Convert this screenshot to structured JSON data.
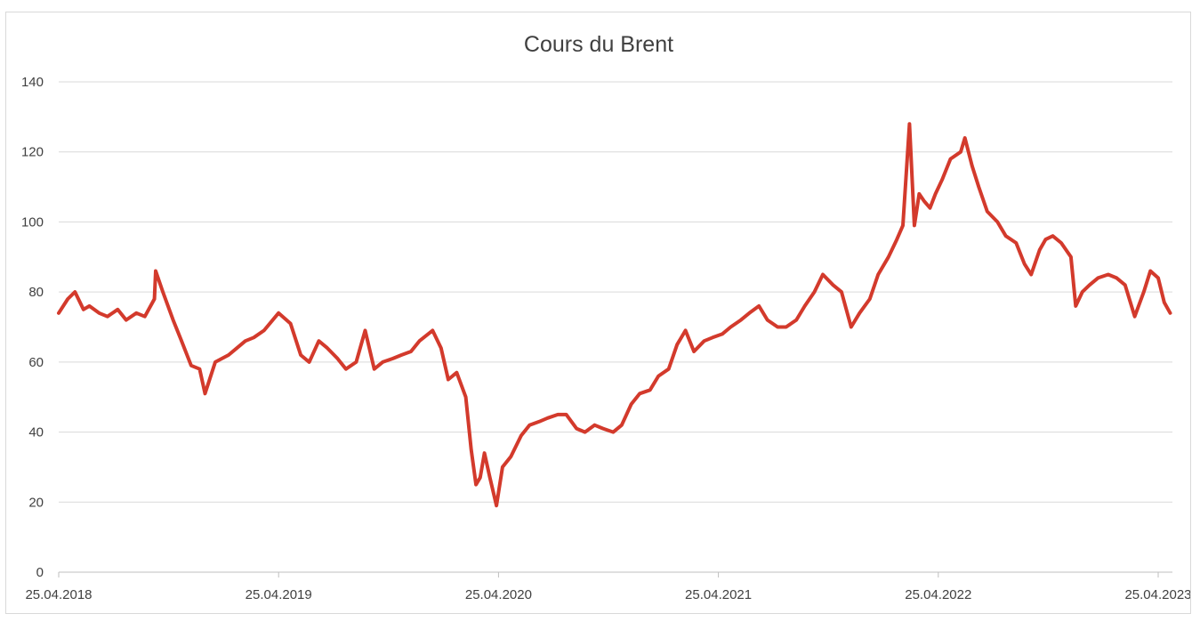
{
  "chart_data": {
    "type": "line",
    "title": "Cours du Brent",
    "xlabel": "",
    "ylabel": "",
    "ylim": [
      0,
      140
    ],
    "yticks": [
      0,
      20,
      40,
      60,
      80,
      100,
      120,
      140
    ],
    "xlim": [
      "2018-04-25",
      "2023-05-15"
    ],
    "xtick_labels": [
      "25.04.2018",
      "25.04.2019",
      "25.04.2020",
      "25.04.2021",
      "25.04.2022",
      "25.04.2023"
    ],
    "grid": true,
    "legend": "none",
    "color": "#d33a2c",
    "series": [
      {
        "x": [
          "2018-04-25",
          "2018-05-10",
          "2018-05-22",
          "2018-06-05",
          "2018-06-15",
          "2018-07-01",
          "2018-07-15",
          "2018-08-01",
          "2018-08-15",
          "2018-09-01",
          "2018-09-15",
          "2018-10-01",
          "2018-10-03",
          "2018-10-15",
          "2018-11-01",
          "2018-11-15",
          "2018-12-01",
          "2018-12-15",
          "2018-12-24",
          "2019-01-10",
          "2019-02-01",
          "2019-02-15",
          "2019-03-01",
          "2019-03-15",
          "2019-04-01",
          "2019-04-25",
          "2019-05-15",
          "2019-06-01",
          "2019-06-15",
          "2019-07-01",
          "2019-07-15",
          "2019-08-01",
          "2019-08-15",
          "2019-09-01",
          "2019-09-16",
          "2019-10-01",
          "2019-10-15",
          "2019-11-01",
          "2019-11-15",
          "2019-12-01",
          "2019-12-15",
          "2020-01-06",
          "2020-01-20",
          "2020-02-01",
          "2020-02-15",
          "2020-03-01",
          "2020-03-10",
          "2020-03-18",
          "2020-03-25",
          "2020-04-01",
          "2020-04-10",
          "2020-04-21",
          "2020-05-01",
          "2020-05-15",
          "2020-06-01",
          "2020-06-15",
          "2020-07-01",
          "2020-07-15",
          "2020-08-01",
          "2020-08-15",
          "2020-09-01",
          "2020-09-15",
          "2020-10-01",
          "2020-10-15",
          "2020-11-01",
          "2020-11-15",
          "2020-12-01",
          "2020-12-15",
          "2021-01-01",
          "2021-01-15",
          "2021-02-01",
          "2021-02-15",
          "2021-03-01",
          "2021-03-15",
          "2021-04-01",
          "2021-04-15",
          "2021-05-01",
          "2021-05-15",
          "2021-06-01",
          "2021-06-15",
          "2021-07-01",
          "2021-07-15",
          "2021-08-01",
          "2021-08-15",
          "2021-09-01",
          "2021-09-15",
          "2021-10-01",
          "2021-10-15",
          "2021-11-01",
          "2021-11-15",
          "2021-12-01",
          "2021-12-15",
          "2022-01-01",
          "2022-01-15",
          "2022-02-01",
          "2022-02-15",
          "2022-02-25",
          "2022-03-08",
          "2022-03-16",
          "2022-03-24",
          "2022-04-01",
          "2022-04-11",
          "2022-04-20",
          "2022-05-01",
          "2022-05-15",
          "2022-06-01",
          "2022-06-08",
          "2022-06-20",
          "2022-07-01",
          "2022-07-15",
          "2022-08-01",
          "2022-08-15",
          "2022-09-01",
          "2022-09-15",
          "2022-09-26",
          "2022-10-10",
          "2022-10-20",
          "2022-11-01",
          "2022-11-15",
          "2022-12-01",
          "2022-12-09",
          "2022-12-20",
          "2023-01-01",
          "2023-01-15",
          "2023-02-01",
          "2023-02-15",
          "2023-03-01",
          "2023-03-17",
          "2023-04-01",
          "2023-04-12",
          "2023-04-25",
          "2023-05-05",
          "2023-05-15"
        ],
        "y": [
          74,
          78,
          80,
          75,
          76,
          74,
          73,
          75,
          72,
          74,
          73,
          78,
          86,
          80,
          72,
          66,
          59,
          58,
          51,
          60,
          62,
          64,
          66,
          67,
          69,
          74,
          71,
          62,
          60,
          66,
          64,
          61,
          58,
          60,
          69,
          58,
          60,
          61,
          62,
          63,
          66,
          69,
          64,
          55,
          57,
          50,
          35,
          25,
          27,
          34,
          27,
          19,
          30,
          33,
          39,
          42,
          43,
          44,
          45,
          45,
          41,
          40,
          42,
          41,
          40,
          42,
          48,
          51,
          52,
          56,
          58,
          65,
          69,
          63,
          66,
          67,
          68,
          70,
          72,
          74,
          76,
          72,
          70,
          70,
          72,
          76,
          80,
          85,
          82,
          80,
          70,
          74,
          78,
          85,
          90,
          95,
          99,
          128,
          99,
          108,
          106,
          104,
          108,
          112,
          118,
          120,
          124,
          116,
          110,
          103,
          100,
          96,
          94,
          88,
          85,
          92,
          95,
          96,
          94,
          90,
          76,
          80,
          82,
          84,
          85,
          84,
          82,
          73,
          80,
          86,
          84,
          77,
          74
        ]
      }
    ]
  }
}
